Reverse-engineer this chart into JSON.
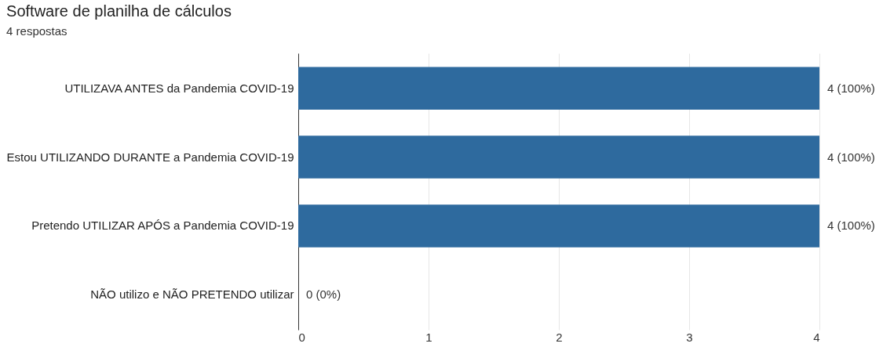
{
  "chart_data": {
    "type": "bar",
    "orientation": "horizontal",
    "title": "Software de planilha de cálculos",
    "subtitle": "4 respostas",
    "categories": [
      "UTILIZAVA ANTES da Pandemia COVID-19",
      "Estou UTILIZANDO DURANTE a Pandemia COVID-19",
      "Pretendo UTILIZAR APÓS a Pandemia COVID-19",
      "NÃO utilizo e NÃO PRETENDO utilizar"
    ],
    "values": [
      4,
      4,
      4,
      0
    ],
    "value_labels": [
      "4 (100%)",
      "4 (100%)",
      "4 (100%)",
      "0 (0%)"
    ],
    "color": "#2e6a9e",
    "xlim": [
      0,
      4
    ],
    "xticks": [
      0,
      1,
      2,
      3,
      4
    ],
    "grid": "x"
  }
}
